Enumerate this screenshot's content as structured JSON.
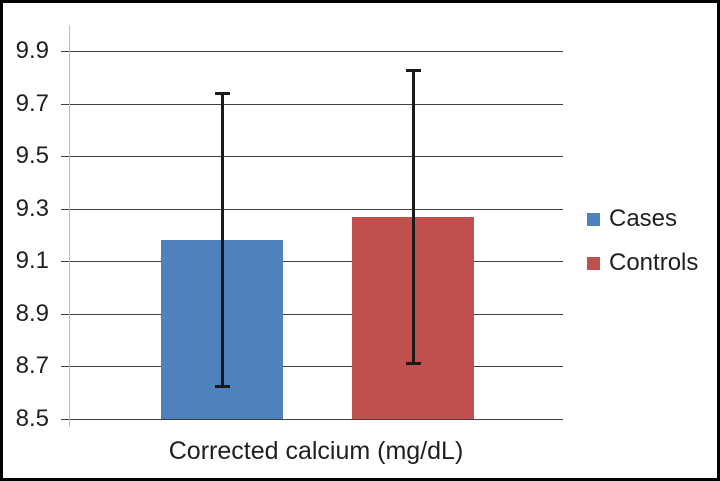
{
  "chart_data": {
    "type": "bar",
    "title": "",
    "xlabel": "Corrected calcium (mg/dL)",
    "ylabel": "",
    "categories": [
      "Corrected calcium (mg/dL)"
    ],
    "series": [
      {
        "name": "Cases",
        "value": 9.18,
        "err_low": 8.62,
        "err_high": 9.74,
        "color": "#4F81BD"
      },
      {
        "name": "Controls",
        "value": 9.27,
        "err_low": 8.71,
        "err_high": 9.83,
        "color": "#C0504D"
      }
    ],
    "ylim": [
      8.5,
      10.0
    ],
    "yticks": [
      9.9,
      9.7,
      9.5,
      9.3,
      9.1,
      8.9,
      8.7,
      8.5
    ],
    "ytick_decimals": 1,
    "grid": true,
    "legend_position": "right",
    "colors": {
      "gridline": "#3f3f3f",
      "axis_line": "#bfbfbf",
      "error_bar": "#1a1a1a",
      "text": "#1f1f1f",
      "background": "#ffffff",
      "frame_border": "#000000"
    }
  }
}
